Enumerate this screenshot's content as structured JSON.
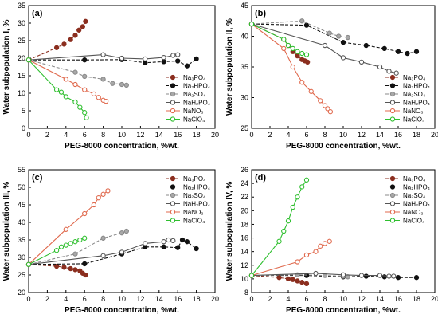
{
  "figure": {
    "marker_labels": [
      "Na₃PO₄",
      "Na₂HPO₄",
      "Na₂SO₄",
      "NaH₂PO₄",
      "NaNO₃",
      "NaClO₄"
    ]
  },
  "series_styles": [
    {
      "color": "#8b2e1f",
      "fill": "#8b2e1f",
      "dash": true
    },
    {
      "color": "#111111",
      "fill": "#111111",
      "dash": true
    },
    {
      "color": "#8a8a8a",
      "fill": "#a8a8a8",
      "dash": true
    },
    {
      "color": "#555555",
      "fill": "#ffffff",
      "dash": false
    },
    {
      "color": "#e06a4e",
      "fill": "#ffffff",
      "dash": false
    },
    {
      "color": "#2fbf2f",
      "fill": "#ffffff",
      "dash": false
    }
  ],
  "chart_data": [
    {
      "type": "line",
      "panel_label": "(a)",
      "xlabel": "PEG-8000 concentration, %wt.",
      "ylabel": "Water subpopulation I, %",
      "xlim": [
        0,
        20
      ],
      "ylim": [
        0,
        35
      ],
      "xticks": [
        0,
        2,
        4,
        6,
        8,
        10,
        12,
        14,
        16,
        18,
        20
      ],
      "yticks": [
        0,
        5,
        10,
        15,
        20,
        25,
        30,
        35
      ],
      "legend": "lower-right",
      "series": [
        {
          "name": "Na₃PO₄",
          "x": [
            0,
            3,
            3.8,
            4.5,
            5,
            5.4,
            5.8,
            6.1
          ],
          "y": [
            19.5,
            23,
            24,
            25.3,
            26.5,
            28,
            29,
            30.5
          ]
        },
        {
          "name": "Na₂HPO₄",
          "x": [
            0,
            6,
            10,
            12.5,
            14.5,
            16,
            17,
            18
          ],
          "y": [
            19.5,
            19.5,
            19.6,
            18.7,
            19,
            19.2,
            17.8,
            19.8
          ]
        },
        {
          "name": "Na₂SO₄",
          "x": [
            0,
            5,
            6,
            8,
            9,
            10,
            10.5
          ],
          "y": [
            19.5,
            16,
            14.8,
            14,
            12.8,
            12.5,
            12.3
          ]
        },
        {
          "name": "NaH₂PO₄",
          "x": [
            0,
            8,
            10,
            12.5,
            14.5,
            15.5,
            16
          ],
          "y": [
            19.5,
            21,
            20,
            19.8,
            20.2,
            20.8,
            21
          ]
        },
        {
          "name": "NaNO₃",
          "x": [
            0,
            4,
            5,
            6,
            7,
            7.5,
            8,
            8.3
          ],
          "y": [
            19.5,
            14,
            12.5,
            11,
            9.8,
            8.8,
            8,
            7.7
          ]
        },
        {
          "name": "NaClO₄",
          "x": [
            0,
            3,
            3.5,
            4,
            5,
            5.5,
            6,
            6.2
          ],
          "y": [
            19.5,
            11,
            10.3,
            9,
            7.5,
            6,
            4.5,
            3
          ]
        }
      ]
    },
    {
      "type": "line",
      "panel_label": "(b)",
      "xlabel": "PEG-8000 concentration, %wt.",
      "ylabel": "Water subpopulation II, %",
      "xlim": [
        0,
        20
      ],
      "ylim": [
        25,
        45
      ],
      "xticks": [
        0,
        2,
        4,
        6,
        8,
        10,
        12,
        14,
        16,
        18,
        20
      ],
      "yticks": [
        25,
        30,
        35,
        40,
        45
      ],
      "legend": "lower-right",
      "series": [
        {
          "name": "Na₃PO₄",
          "x": [
            0,
            3.5,
            4,
            4.5,
            5,
            5.5,
            5.8,
            6.1
          ],
          "y": [
            42,
            39.5,
            38.5,
            37.5,
            36.8,
            36.2,
            36,
            35.8
          ]
        },
        {
          "name": "Na₂HPO₄",
          "x": [
            0,
            6,
            10,
            12.5,
            14.5,
            16,
            17,
            18
          ],
          "y": [
            42,
            41.8,
            39,
            38.5,
            38,
            37.5,
            37.2,
            37.5
          ]
        },
        {
          "name": "Na₂SO₄",
          "x": [
            0,
            5.5,
            8.5,
            9.5,
            10.5
          ],
          "y": [
            42,
            42.5,
            40.5,
            40,
            39.8
          ]
        },
        {
          "name": "NaH₂PO₄",
          "x": [
            0,
            8,
            10,
            12,
            14,
            15,
            15.8
          ],
          "y": [
            42,
            38.5,
            36.5,
            35.8,
            35,
            34.3,
            34
          ]
        },
        {
          "name": "NaNO₃",
          "x": [
            0,
            3.5,
            4.5,
            5.5,
            6.5,
            7.5,
            8,
            8.3,
            8.6
          ],
          "y": [
            42,
            38,
            35,
            32.5,
            31,
            29.5,
            28.7,
            28.2,
            27.7
          ]
        },
        {
          "name": "NaClO₄",
          "x": [
            0,
            3.5,
            4,
            4.5,
            5,
            5.5,
            6
          ],
          "y": [
            42,
            39.5,
            38.5,
            38,
            37.5,
            37.2,
            37
          ]
        }
      ]
    },
    {
      "type": "line",
      "panel_label": "(c)",
      "xlabel": "PEG-8000 concentration, %wt.",
      "ylabel": "Water subpopulation III, %",
      "xlim": [
        0,
        20
      ],
      "ylim": [
        20,
        55
      ],
      "xticks": [
        0,
        2,
        4,
        6,
        8,
        10,
        12,
        14,
        16,
        18,
        20
      ],
      "yticks": [
        20,
        25,
        30,
        35,
        40,
        45,
        50,
        55
      ],
      "legend": "upper-right",
      "series": [
        {
          "name": "Na₃PO₄",
          "x": [
            0,
            3,
            3.8,
            4.5,
            5,
            5.5,
            5.8,
            6.1
          ],
          "y": [
            28,
            27.5,
            27.2,
            26.8,
            26.5,
            26.2,
            25.5,
            25
          ]
        },
        {
          "name": "Na₂HPO₄",
          "x": [
            0,
            6,
            10,
            12.5,
            14.5,
            16,
            16.5,
            17,
            18
          ],
          "y": [
            28,
            28.2,
            31,
            33,
            33,
            32.8,
            35,
            34.5,
            32.5
          ]
        },
        {
          "name": "Na₂SO₄",
          "x": [
            0,
            5,
            8,
            10,
            10.5
          ],
          "y": [
            28,
            31,
            35.5,
            37,
            37.5
          ]
        },
        {
          "name": "NaH₂PO₄",
          "x": [
            0,
            8,
            10,
            12.5,
            14.5,
            15,
            15.5
          ],
          "y": [
            28,
            30.5,
            31.5,
            34,
            34.5,
            35,
            34.8
          ]
        },
        {
          "name": "NaNO₃",
          "x": [
            0,
            4,
            6,
            7,
            7.5,
            8,
            8.5
          ],
          "y": [
            28,
            38,
            42.5,
            45,
            47,
            48,
            49
          ]
        },
        {
          "name": "NaClO₄",
          "x": [
            0,
            3,
            3.5,
            4,
            4.5,
            5,
            5.5,
            6
          ],
          "y": [
            28,
            32,
            33,
            33.5,
            34,
            34.5,
            35,
            35.5
          ]
        }
      ]
    },
    {
      "type": "line",
      "panel_label": "(d)",
      "xlabel": "PEG-8000 concentration, %wt.",
      "ylabel": "Water subpopulation IV, %",
      "xlim": [
        0,
        20
      ],
      "ylim": [
        8,
        26
      ],
      "xticks": [
        0,
        2,
        4,
        6,
        8,
        10,
        12,
        14,
        16,
        18,
        20
      ],
      "yticks": [
        8,
        10,
        12,
        14,
        16,
        18,
        20,
        22,
        24,
        26
      ],
      "legend": "upper-right",
      "series": [
        {
          "name": "Na₃PO₄",
          "x": [
            0,
            3,
            4,
            4.5,
            5,
            5.5,
            6
          ],
          "y": [
            10.5,
            10.2,
            10,
            9.9,
            9.7,
            9.5,
            9.3
          ]
        },
        {
          "name": "Na₂HPO₄",
          "x": [
            0,
            6,
            10,
            12.5,
            14.5,
            16,
            18
          ],
          "y": [
            10.5,
            10.5,
            10.3,
            10.4,
            10.3,
            10.2,
            10.2
          ]
        },
        {
          "name": "Na₂SO₄",
          "x": [
            0,
            5,
            8,
            10,
            10.5
          ],
          "y": [
            10.5,
            10.6,
            10.5,
            10.4,
            10.3
          ]
        },
        {
          "name": "NaH₂PO₄",
          "x": [
            0,
            7,
            10,
            12,
            14,
            15,
            15.5
          ],
          "y": [
            10.5,
            10.8,
            10.6,
            10.5,
            10.5,
            10.4,
            10.4
          ]
        },
        {
          "name": "NaNO₃",
          "x": [
            0,
            5,
            6,
            7,
            7.5,
            8,
            8.5
          ],
          "y": [
            10.5,
            12.5,
            13.5,
            14,
            14.8,
            15.2,
            15.5
          ]
        },
        {
          "name": "NaClO₄",
          "x": [
            0,
            3,
            3.5,
            4,
            4.5,
            5,
            5.5,
            6
          ],
          "y": [
            10.5,
            15.5,
            17,
            18.5,
            20.5,
            22,
            23.5,
            24.5
          ]
        }
      ]
    }
  ]
}
